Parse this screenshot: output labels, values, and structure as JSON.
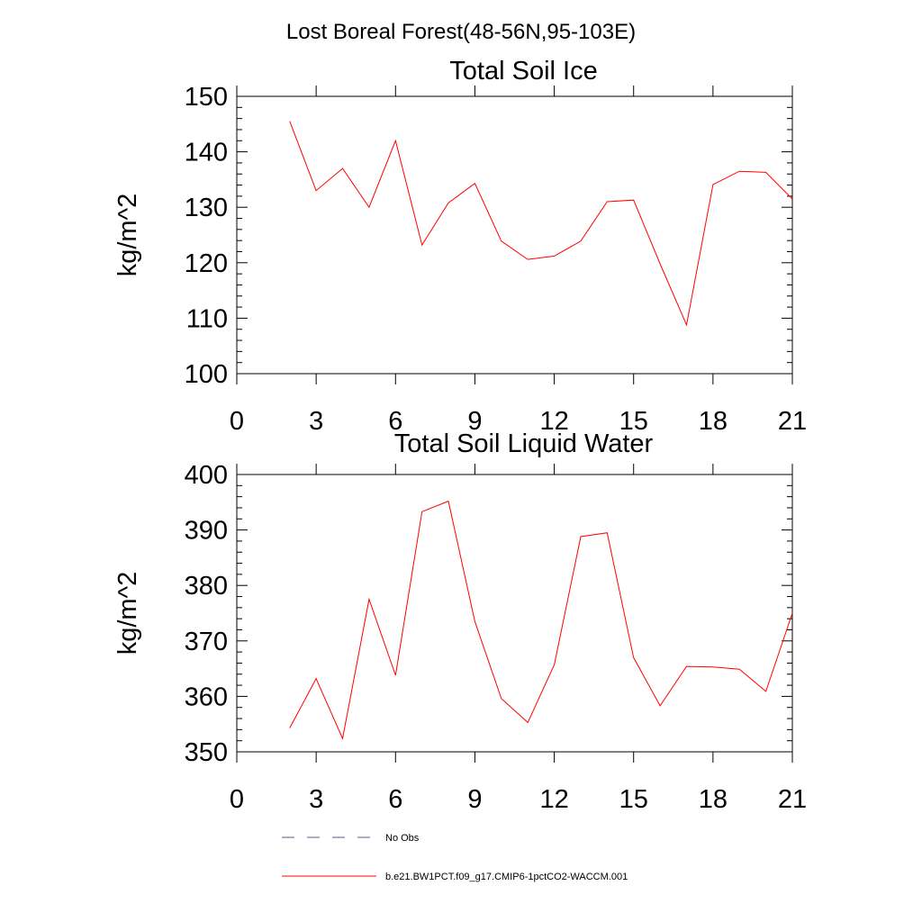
{
  "title": "Lost Boreal Forest(48-56N,95-103E)",
  "chart_data": [
    {
      "type": "line",
      "title": "Total Soil Ice",
      "ylabel": "kg/m^2",
      "xlabel": "",
      "xlim": [
        0,
        21
      ],
      "ylim": [
        100,
        150
      ],
      "xticks": [
        0,
        3,
        6,
        9,
        12,
        15,
        18,
        21
      ],
      "xtick_labels": [
        "0",
        "3",
        "6",
        "9",
        "12",
        "15",
        "18",
        "21"
      ],
      "yticks": [
        100,
        110,
        120,
        130,
        140,
        150
      ],
      "ytick_labels": [
        "100",
        "110",
        "120",
        "130",
        "140",
        "150"
      ],
      "x": [
        2,
        3,
        4,
        5,
        6,
        7,
        8,
        9,
        10,
        11,
        12,
        13,
        14,
        15,
        16,
        17,
        18,
        19,
        20,
        21
      ],
      "series": [
        {
          "name": "b.e21.BW1PCT.f09_g17.CMIP6-1pctCO2-WACCM.001",
          "color": "#ff0000",
          "values": [
            145.5,
            133.0,
            137.0,
            130.0,
            142.0,
            123.2,
            130.8,
            134.3,
            123.9,
            120.6,
            121.2,
            123.9,
            131.0,
            131.3,
            119.8,
            108.8,
            134.1,
            136.5,
            136.3,
            131.5
          ]
        }
      ]
    },
    {
      "type": "line",
      "title": "Total Soil Liquid Water",
      "ylabel": "kg/m^2",
      "xlabel": "",
      "xlim": [
        0,
        21
      ],
      "ylim": [
        350,
        400
      ],
      "xticks": [
        0,
        3,
        6,
        9,
        12,
        15,
        18,
        21
      ],
      "xtick_labels": [
        "0",
        "3",
        "6",
        "9",
        "12",
        "15",
        "18",
        "21"
      ],
      "yticks": [
        350,
        360,
        370,
        380,
        390,
        400
      ],
      "ytick_labels": [
        "350",
        "360",
        "370",
        "380",
        "390",
        "400"
      ],
      "x": [
        2,
        3,
        4,
        5,
        6,
        7,
        8,
        9,
        10,
        11,
        12,
        13,
        14,
        15,
        16,
        17,
        18,
        19,
        20,
        21
      ],
      "series": [
        {
          "name": "b.e21.BW1PCT.f09_g17.CMIP6-1pctCO2-WACCM.001",
          "color": "#ff0000",
          "values": [
            354.3,
            363.2,
            352.4,
            377.5,
            363.8,
            393.3,
            395.2,
            373.5,
            359.6,
            355.3,
            365.7,
            388.8,
            389.5,
            367.0,
            358.3,
            365.4,
            365.3,
            364.9,
            360.9,
            375.0
          ]
        }
      ]
    }
  ],
  "legend": {
    "items": [
      {
        "label": "No Obs",
        "style": "dashed",
        "color": "#5a5a8a"
      },
      {
        "label": "b.e21.BW1PCT.f09_g17.CMIP6-1pctCO2-WACCM.001",
        "style": "solid",
        "color": "#ff0000"
      }
    ]
  }
}
